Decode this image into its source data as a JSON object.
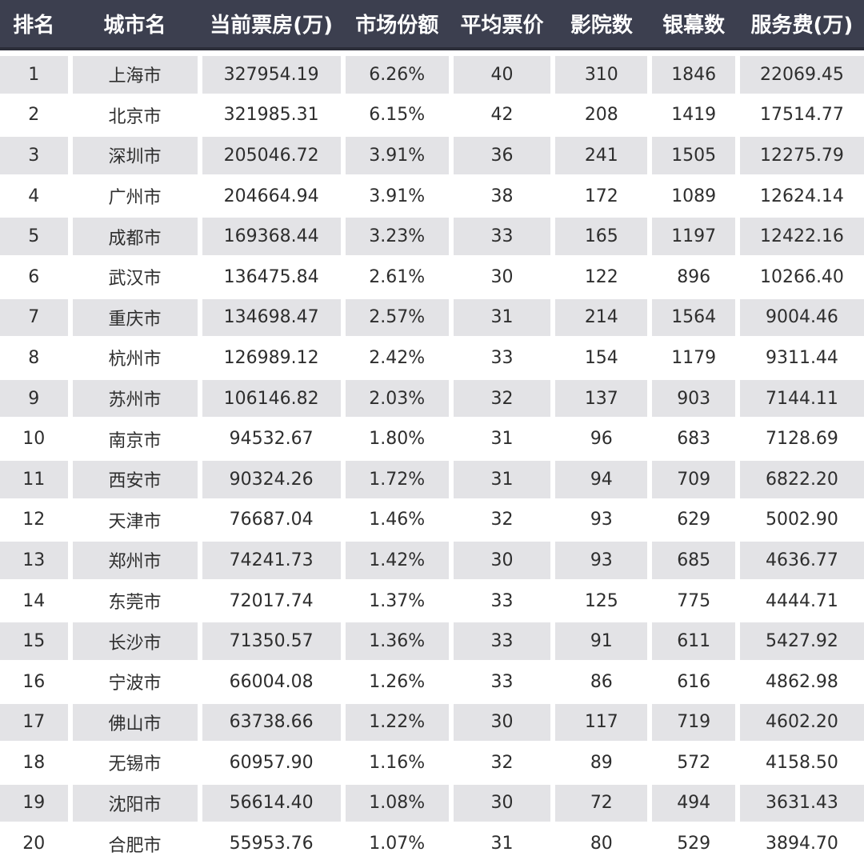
{
  "colors": {
    "header_bg": "#3c3f4f",
    "header_text": "#ffffff",
    "shade_row": "#e3e3e6"
  },
  "table": {
    "headers": [
      "排名",
      "城市名",
      "当前票房(万)",
      "市场份额",
      "平均票价",
      "影院数",
      "银幕数",
      "服务费(万)"
    ],
    "rows": [
      [
        "1",
        "上海市",
        "327954.19",
        "6.26%",
        "40",
        "310",
        "1846",
        "22069.45"
      ],
      [
        "2",
        "北京市",
        "321985.31",
        "6.15%",
        "42",
        "208",
        "1419",
        "17514.77"
      ],
      [
        "3",
        "深圳市",
        "205046.72",
        "3.91%",
        "36",
        "241",
        "1505",
        "12275.79"
      ],
      [
        "4",
        "广州市",
        "204664.94",
        "3.91%",
        "38",
        "172",
        "1089",
        "12624.14"
      ],
      [
        "5",
        "成都市",
        "169368.44",
        "3.23%",
        "33",
        "165",
        "1197",
        "12422.16"
      ],
      [
        "6",
        "武汉市",
        "136475.84",
        "2.61%",
        "30",
        "122",
        "896",
        "10266.40"
      ],
      [
        "7",
        "重庆市",
        "134698.47",
        "2.57%",
        "31",
        "214",
        "1564",
        "9004.46"
      ],
      [
        "8",
        "杭州市",
        "126989.12",
        "2.42%",
        "33",
        "154",
        "1179",
        "9311.44"
      ],
      [
        "9",
        "苏州市",
        "106146.82",
        "2.03%",
        "32",
        "137",
        "903",
        "7144.11"
      ],
      [
        "10",
        "南京市",
        "94532.67",
        "1.80%",
        "31",
        "96",
        "683",
        "7128.69"
      ],
      [
        "11",
        "西安市",
        "90324.26",
        "1.72%",
        "31",
        "94",
        "709",
        "6822.20"
      ],
      [
        "12",
        "天津市",
        "76687.04",
        "1.46%",
        "32",
        "93",
        "629",
        "5002.90"
      ],
      [
        "13",
        "郑州市",
        "74241.73",
        "1.42%",
        "30",
        "93",
        "685",
        "4636.77"
      ],
      [
        "14",
        "东莞市",
        "72017.74",
        "1.37%",
        "33",
        "125",
        "775",
        "4444.71"
      ],
      [
        "15",
        "长沙市",
        "71350.57",
        "1.36%",
        "33",
        "91",
        "611",
        "5427.92"
      ],
      [
        "16",
        "宁波市",
        "66004.08",
        "1.26%",
        "33",
        "86",
        "616",
        "4862.98"
      ],
      [
        "17",
        "佛山市",
        "63738.66",
        "1.22%",
        "30",
        "117",
        "719",
        "4602.20"
      ],
      [
        "18",
        "无锡市",
        "60957.90",
        "1.16%",
        "32",
        "89",
        "572",
        "4158.50"
      ],
      [
        "19",
        "沈阳市",
        "56614.40",
        "1.08%",
        "30",
        "72",
        "494",
        "3631.43"
      ],
      [
        "20",
        "合肥市",
        "55953.76",
        "1.07%",
        "31",
        "80",
        "529",
        "3894.70"
      ]
    ]
  }
}
